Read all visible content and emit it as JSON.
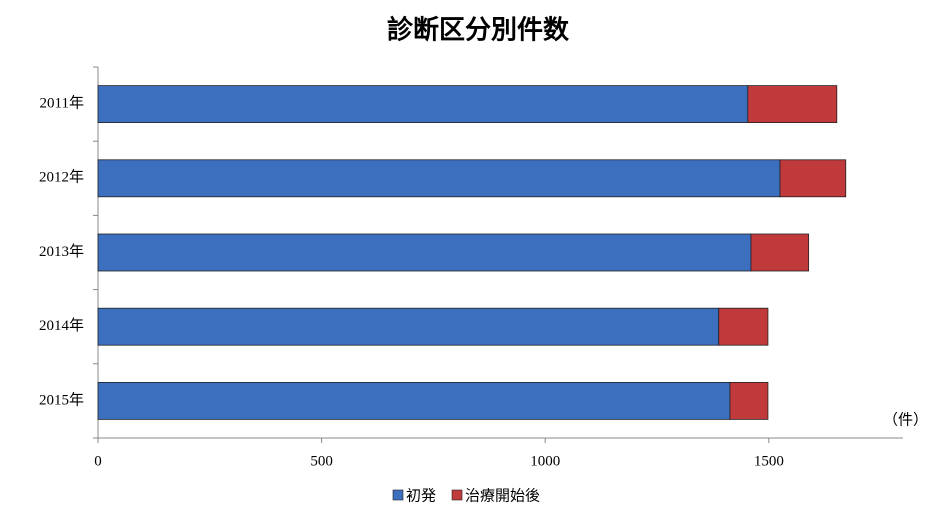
{
  "chart_data": {
    "type": "stacked-barh",
    "title": "診断区分別件数",
    "categories": [
      "2011年",
      "2012年",
      "2013年",
      "2014年",
      "2015年"
    ],
    "series": [
      {
        "name": "初発",
        "color": "#3d6fbf",
        "values": [
          1453,
          1525,
          1460,
          1388,
          1413
        ]
      },
      {
        "name": "治療開始後",
        "color": "#c0393b",
        "values": [
          199,
          147,
          129,
          110,
          85
        ]
      }
    ],
    "xlim": [
      0,
      1800
    ],
    "xticks": [
      0,
      500,
      1000,
      1500
    ],
    "x_unit_label": "（件）",
    "legend": "bottom",
    "grid": false
  }
}
